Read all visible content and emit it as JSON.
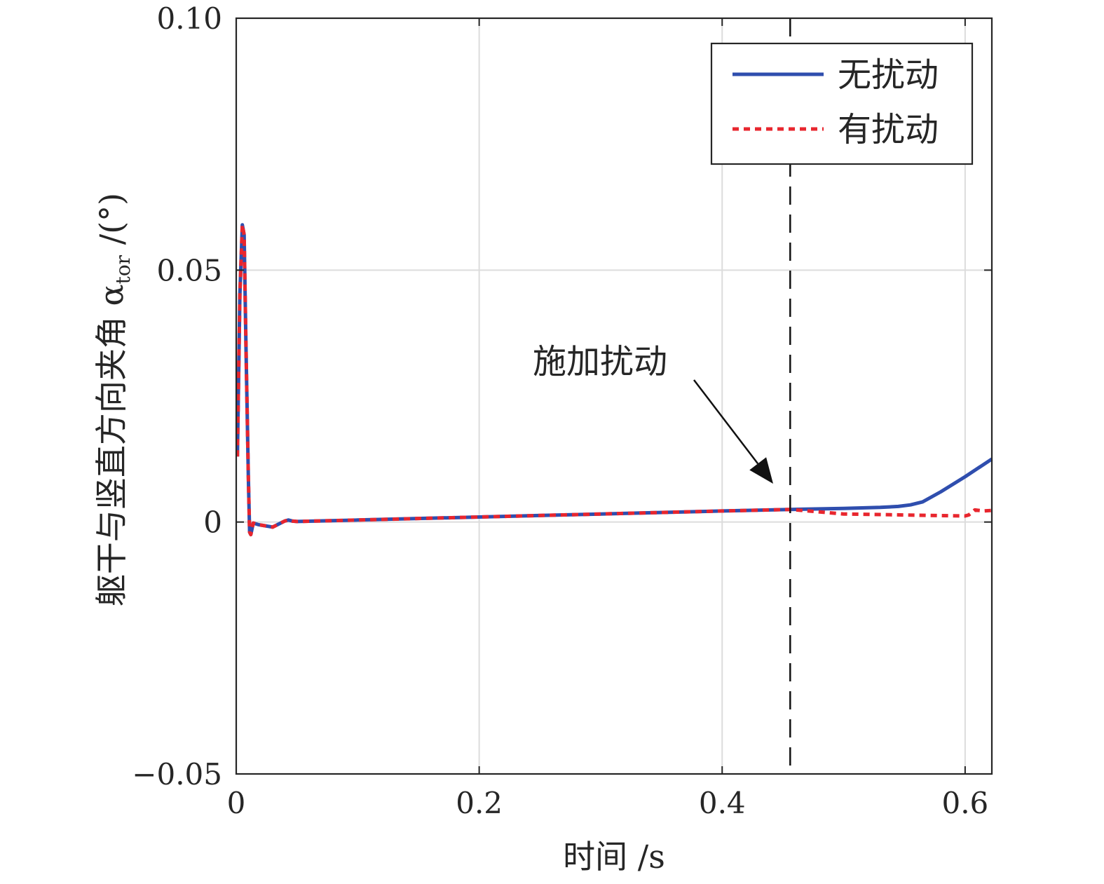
{
  "chart_data": {
    "type": "line",
    "xlabel": "时间 /s",
    "ylabel": "躯干与竖直方向夹角 α",
    "ylabel_sub": "tor",
    "ylabel_unit": " /(°)",
    "xlim": [
      0,
      0.622
    ],
    "ylim": [
      -0.05,
      0.1
    ],
    "xticks": [
      0,
      0.2,
      0.4,
      0.6
    ],
    "xtick_labels": [
      "0",
      "0.2",
      "0.4",
      "0.6"
    ],
    "yticks": [
      -0.05,
      0,
      0.05,
      0.1
    ],
    "ytick_labels": [
      "−0.05",
      "0",
      "0.05",
      "0.10"
    ],
    "grid": true,
    "legend_position": "top-right",
    "annotation": {
      "text": "施加扰动",
      "x": 0.456,
      "y": 0.0075
    },
    "vline_x": 0.456,
    "series": [
      {
        "name": "无扰动",
        "color": "#2f4eae",
        "style": "solid",
        "x": [
          0.001,
          0.003,
          0.005,
          0.0065,
          0.008,
          0.01,
          0.011,
          0.012,
          0.014,
          0.018,
          0.025,
          0.03,
          0.035,
          0.04,
          0.043,
          0.046,
          0.05,
          0.1,
          0.2,
          0.3,
          0.4,
          0.456,
          0.5,
          0.53,
          0.545,
          0.555,
          0.565,
          0.58,
          0.6,
          0.622
        ],
        "y": [
          0.013,
          0.045,
          0.059,
          0.057,
          0.035,
          0.009,
          -0.002,
          -0.0025,
          -0.0002,
          -0.0005,
          -0.0008,
          -0.001,
          -0.0004,
          0.0002,
          0.0004,
          0.0002,
          0.0001,
          0.0004,
          0.001,
          0.0016,
          0.0022,
          0.0025,
          0.0027,
          0.0029,
          0.0031,
          0.0034,
          0.004,
          0.006,
          0.009,
          0.0125
        ]
      },
      {
        "name": "有扰动",
        "color": "#e8262e",
        "style": "dotted",
        "x": [
          0.001,
          0.003,
          0.005,
          0.0065,
          0.008,
          0.01,
          0.011,
          0.012,
          0.014,
          0.018,
          0.025,
          0.03,
          0.035,
          0.04,
          0.043,
          0.046,
          0.05,
          0.1,
          0.2,
          0.3,
          0.4,
          0.456,
          0.5,
          0.55,
          0.6,
          0.603,
          0.608,
          0.615,
          0.622
        ],
        "y": [
          0.013,
          0.045,
          0.059,
          0.057,
          0.035,
          0.009,
          -0.002,
          -0.0025,
          -0.0002,
          -0.0005,
          -0.0008,
          -0.001,
          -0.0004,
          0.0002,
          0.0004,
          0.0002,
          0.0001,
          0.0004,
          0.001,
          0.0016,
          0.0022,
          0.0025,
          0.0016,
          0.0014,
          0.0012,
          0.0014,
          0.0024,
          0.0022,
          0.0023
        ]
      }
    ]
  }
}
